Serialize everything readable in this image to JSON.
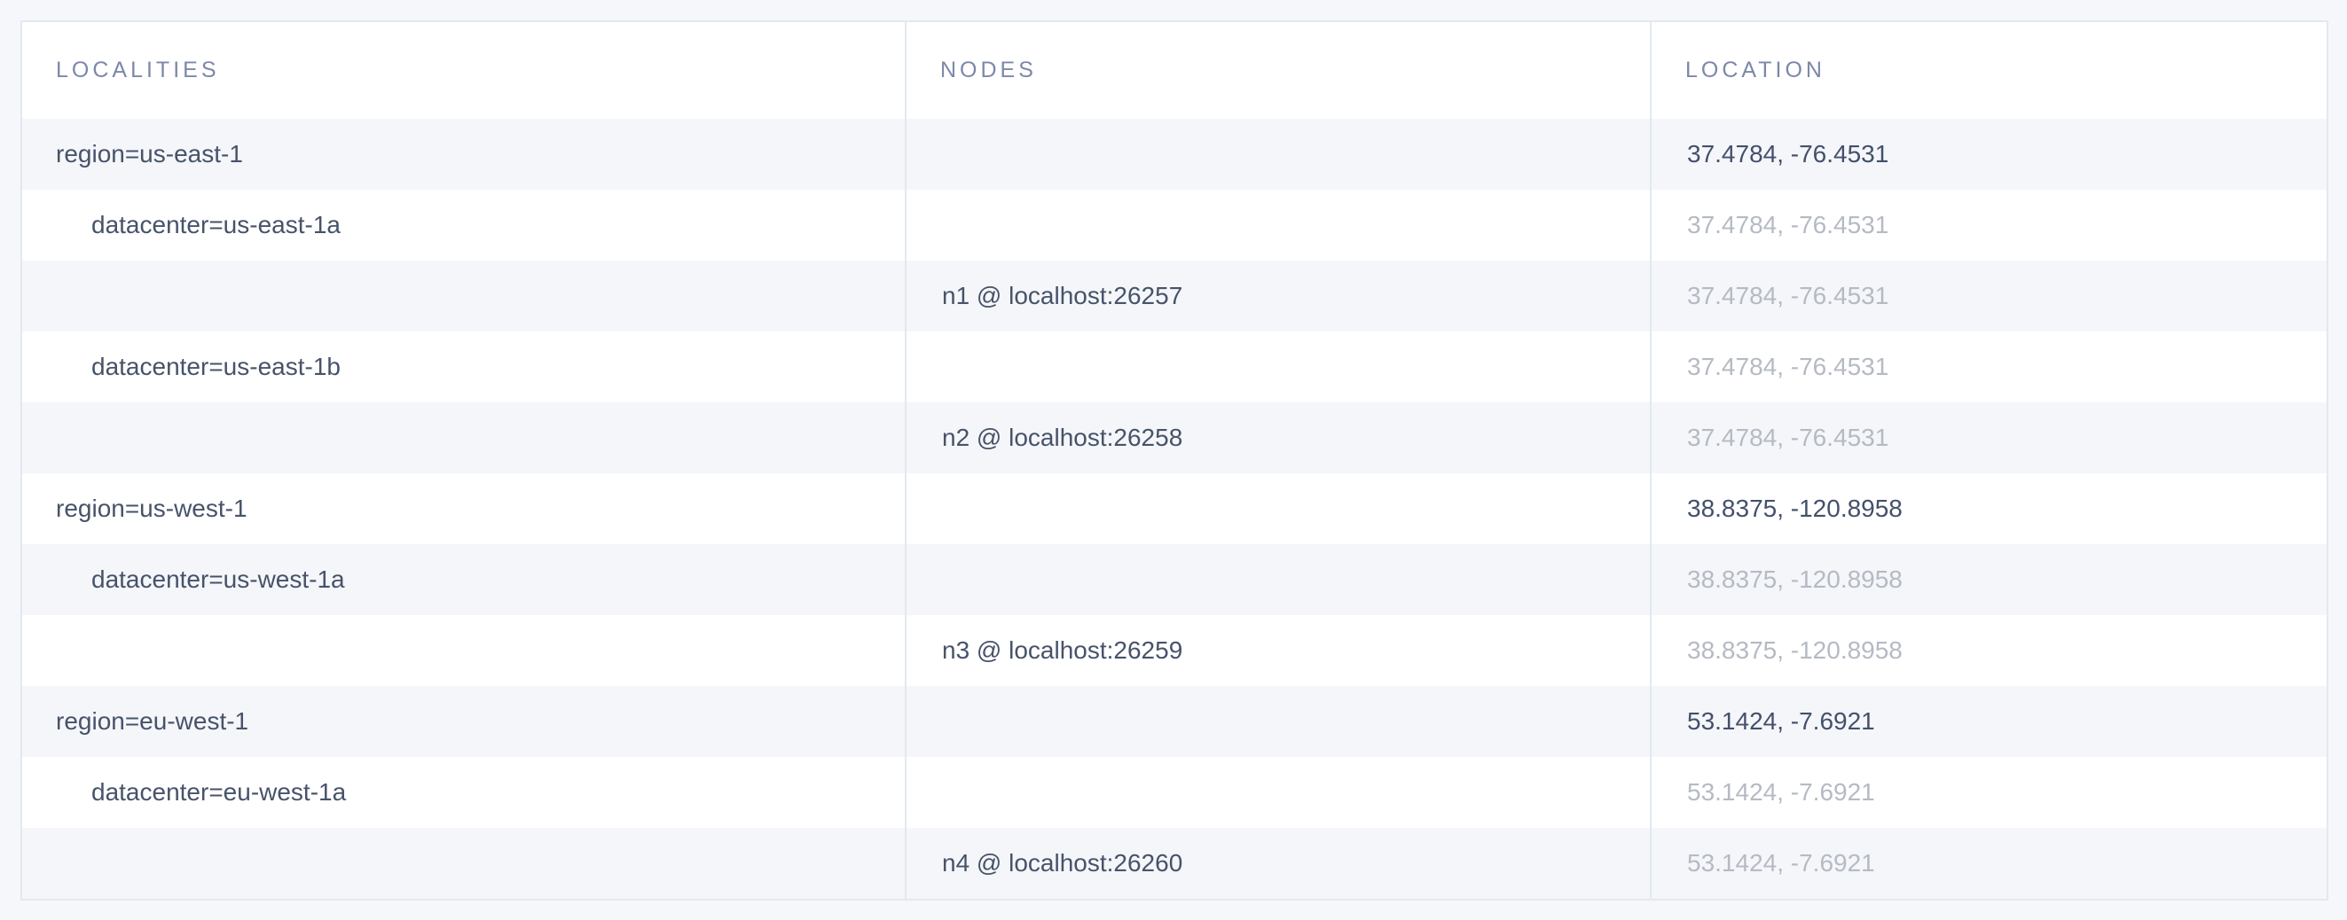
{
  "table": {
    "columns": [
      {
        "id": "localities",
        "label": "LOCALITIES"
      },
      {
        "id": "nodes",
        "label": "NODES"
      },
      {
        "id": "location",
        "label": "LOCATION"
      }
    ],
    "rows": [
      {
        "kind": "region",
        "locality": "region=us-east-1",
        "node": "",
        "location": "37.4784, -76.4531",
        "location_style": "emphasis"
      },
      {
        "kind": "datacenter",
        "locality": "datacenter=us-east-1a",
        "node": "",
        "location": "37.4784, -76.4531",
        "location_style": "muted"
      },
      {
        "kind": "node",
        "locality": "",
        "node": "n1 @ localhost:26257",
        "location": "37.4784, -76.4531",
        "location_style": "muted"
      },
      {
        "kind": "datacenter",
        "locality": "datacenter=us-east-1b",
        "node": "",
        "location": "37.4784, -76.4531",
        "location_style": "muted"
      },
      {
        "kind": "node",
        "locality": "",
        "node": "n2 @ localhost:26258",
        "location": "37.4784, -76.4531",
        "location_style": "muted"
      },
      {
        "kind": "region",
        "locality": "region=us-west-1",
        "node": "",
        "location": "38.8375, -120.8958",
        "location_style": "emphasis"
      },
      {
        "kind": "datacenter",
        "locality": "datacenter=us-west-1a",
        "node": "",
        "location": "38.8375, -120.8958",
        "location_style": "muted"
      },
      {
        "kind": "node",
        "locality": "",
        "node": "n3 @ localhost:26259",
        "location": "38.8375, -120.8958",
        "location_style": "muted"
      },
      {
        "kind": "region",
        "locality": "region=eu-west-1",
        "node": "",
        "location": "53.1424, -7.6921",
        "location_style": "emphasis"
      },
      {
        "kind": "datacenter",
        "locality": "datacenter=eu-west-1a",
        "node": "",
        "location": "53.1424, -7.6921",
        "location_style": "muted"
      },
      {
        "kind": "node",
        "locality": "",
        "node": "n4 @ localhost:26260",
        "location": "53.1424, -7.6921",
        "location_style": "muted"
      }
    ]
  },
  "colors": {
    "page_background": "#f5f7fa",
    "table_background": "#ffffff",
    "row_stripe": "#f4f6fa",
    "border": "#e2e9f0",
    "header_text": "#7d88a8",
    "body_text": "#475369",
    "location_emphasis_text": "#44506b",
    "location_muted_text": "#b5bac3"
  }
}
